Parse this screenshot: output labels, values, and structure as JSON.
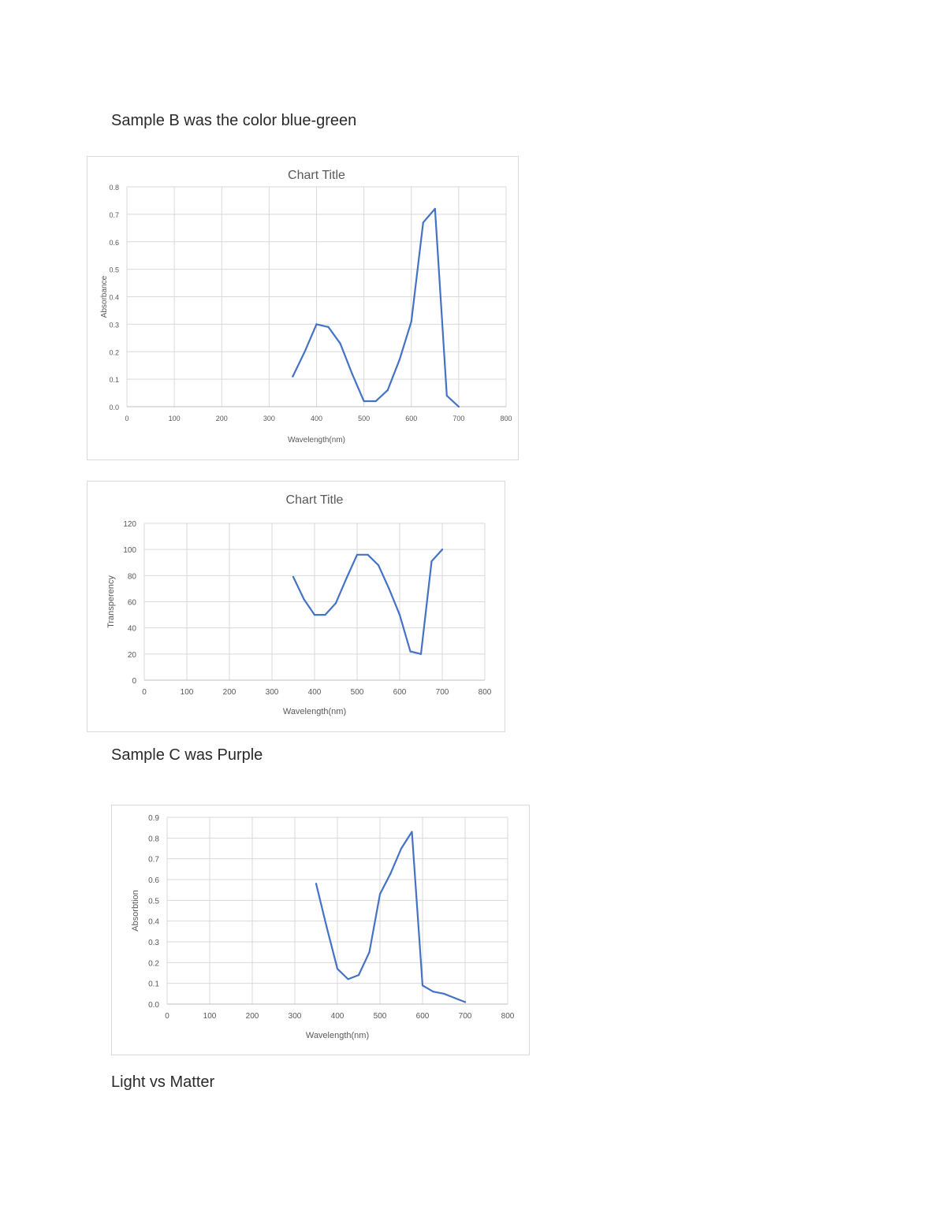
{
  "doc": {
    "heading_b": "Sample B was the color blue-green",
    "heading_c": "Sample C was Purple",
    "heading_footer": "Light vs Matter"
  },
  "colors": {
    "series": "#4472c4",
    "grid": "#d9d9d9",
    "text": "#595959"
  },
  "chart_data": [
    {
      "type": "line",
      "title": "Chart Title",
      "xlabel": "Wavelength(nm)",
      "ylabel": "Absorbance",
      "xlim": [
        0,
        800
      ],
      "ylim": [
        0,
        0.8
      ],
      "xticks": [
        0,
        100,
        200,
        300,
        400,
        500,
        600,
        700,
        800
      ],
      "yticks": [
        0,
        0.1,
        0.2,
        0.3,
        0.4,
        0.5,
        0.6,
        0.7,
        0.8
      ],
      "grid": true,
      "x": [
        350,
        375,
        400,
        425,
        450,
        475,
        500,
        525,
        550,
        575,
        600,
        625,
        650,
        675,
        700
      ],
      "y": [
        0.11,
        0.2,
        0.3,
        0.29,
        0.23,
        0.12,
        0.02,
        0.02,
        0.06,
        0.17,
        0.31,
        0.67,
        0.72,
        0.04,
        0.0
      ]
    },
    {
      "type": "line",
      "title": "Chart Title",
      "xlabel": "Wavelength(nm)",
      "ylabel": "Transperency",
      "xlim": [
        0,
        800
      ],
      "ylim": [
        0,
        120
      ],
      "xticks": [
        0,
        100,
        200,
        300,
        400,
        500,
        600,
        700,
        800
      ],
      "yticks": [
        0,
        20,
        40,
        60,
        80,
        100,
        120
      ],
      "grid": true,
      "x": [
        350,
        375,
        400,
        425,
        450,
        475,
        500,
        525,
        550,
        575,
        600,
        625,
        650,
        675,
        700
      ],
      "y": [
        79,
        62,
        50,
        50,
        59,
        78,
        96,
        96,
        88,
        70,
        50,
        22,
        20,
        91,
        100
      ]
    },
    {
      "type": "line",
      "title": "",
      "xlabel": "Wavelength(nm)",
      "ylabel": "Absorbtion",
      "xlim": [
        0,
        800
      ],
      "ylim": [
        0,
        0.9
      ],
      "xticks": [
        0,
        100,
        200,
        300,
        400,
        500,
        600,
        700,
        800
      ],
      "yticks": [
        0,
        0.1,
        0.2,
        0.3,
        0.4,
        0.5,
        0.6,
        0.7,
        0.8,
        0.9
      ],
      "grid": true,
      "x": [
        350,
        375,
        400,
        425,
        450,
        475,
        500,
        525,
        550,
        575,
        600,
        625,
        650,
        675,
        700
      ],
      "y": [
        0.58,
        0.37,
        0.17,
        0.12,
        0.14,
        0.25,
        0.53,
        0.63,
        0.75,
        0.83,
        0.09,
        0.06,
        0.05,
        0.03,
        0.01
      ]
    }
  ]
}
